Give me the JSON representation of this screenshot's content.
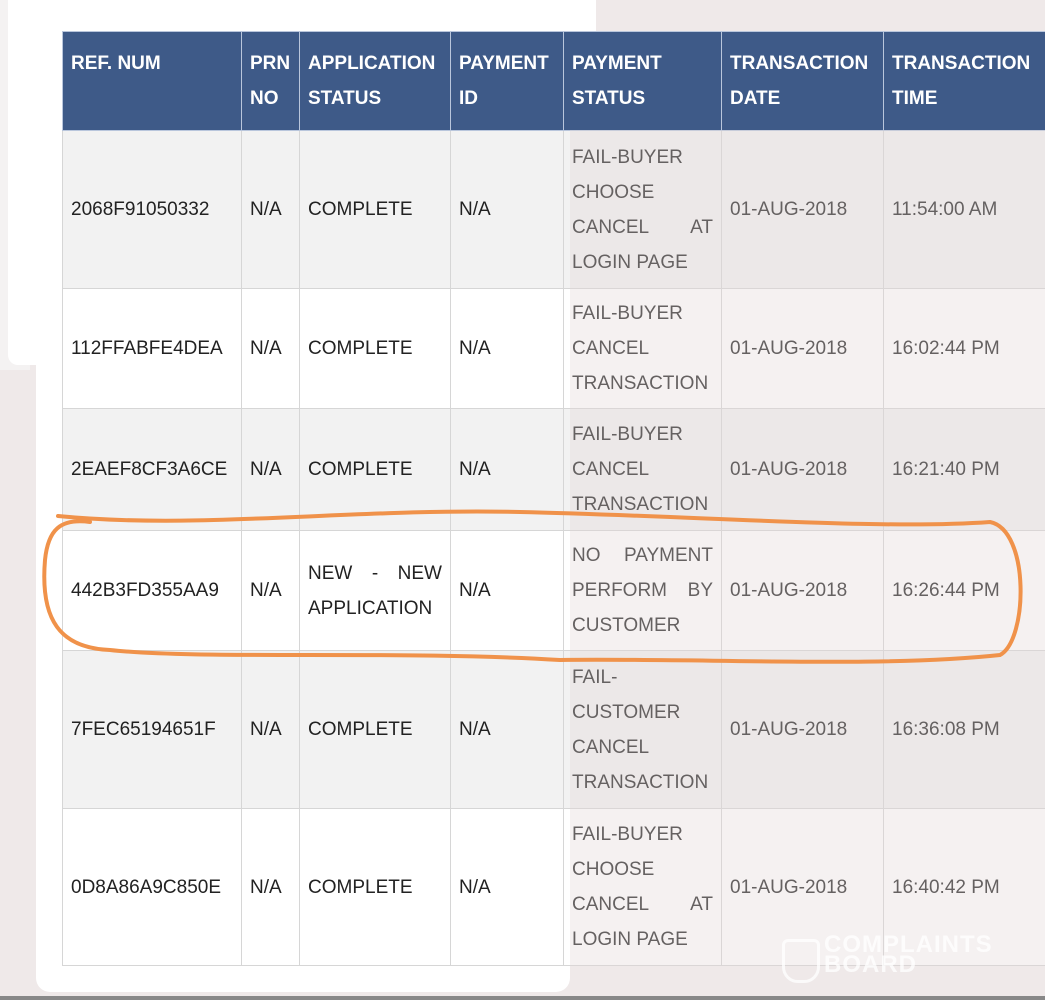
{
  "table": {
    "headers": [
      "REF. NUM",
      "PRN NO",
      "APPLICATION STATUS",
      "PAYMENT ID",
      "PAYMENT STATUS",
      "TRANSACTION DATE",
      "TRANSACTION TIME"
    ],
    "rows": [
      {
        "ref": "2068F91050332",
        "prn": "N/A",
        "app_status": "COMPLETE",
        "payment_id": "N/A",
        "payment_status": "FAIL-BUYER CHOOSE CANCEL AT LOGIN PAGE",
        "date": "01-AUG-2018",
        "time": "11:54:00 AM"
      },
      {
        "ref": "112FFABFE4DEA",
        "prn": "N/A",
        "app_status": "COMPLETE",
        "payment_id": "N/A",
        "payment_status": "FAIL-BUYER CANCEL TRANSACTION",
        "date": "01-AUG-2018",
        "time": "16:02:44 PM"
      },
      {
        "ref": "2EAEF8CF3A6CE",
        "prn": "N/A",
        "app_status": "COMPLETE",
        "payment_id": "N/A",
        "payment_status": "FAIL-BUYER CANCEL TRANSACTION",
        "date": "01-AUG-2018",
        "time": "16:21:40 PM"
      },
      {
        "ref": "442B3FD355AA9",
        "prn": "N/A",
        "app_status": "NEW - NEW APPLICATION",
        "payment_id": "N/A",
        "payment_status": "NO PAYMENT PERFORM BY CUSTOMER",
        "date": "01-AUG-2018",
        "time": "16:26:44 PM"
      },
      {
        "ref": "7FEC65194651F",
        "prn": "N/A",
        "app_status": "COMPLETE",
        "payment_id": "N/A",
        "payment_status": "FAIL- CUSTOMER CANCEL TRANSACTION",
        "date": "01-AUG-2018",
        "time": "16:36:08 PM"
      },
      {
        "ref": "0D8A86A9C850E",
        "prn": "N/A",
        "app_status": "COMPLETE",
        "payment_id": "N/A",
        "payment_status": "FAIL-BUYER CHOOSE CANCEL AT LOGIN PAGE",
        "date": "01-AUG-2018",
        "time": "16:40:42 PM"
      }
    ]
  },
  "annotation": {
    "color": "#f0924a",
    "highlighted_row": 3
  },
  "watermark": {
    "line1": "COMPLAINTS",
    "line2": "BOARD"
  }
}
